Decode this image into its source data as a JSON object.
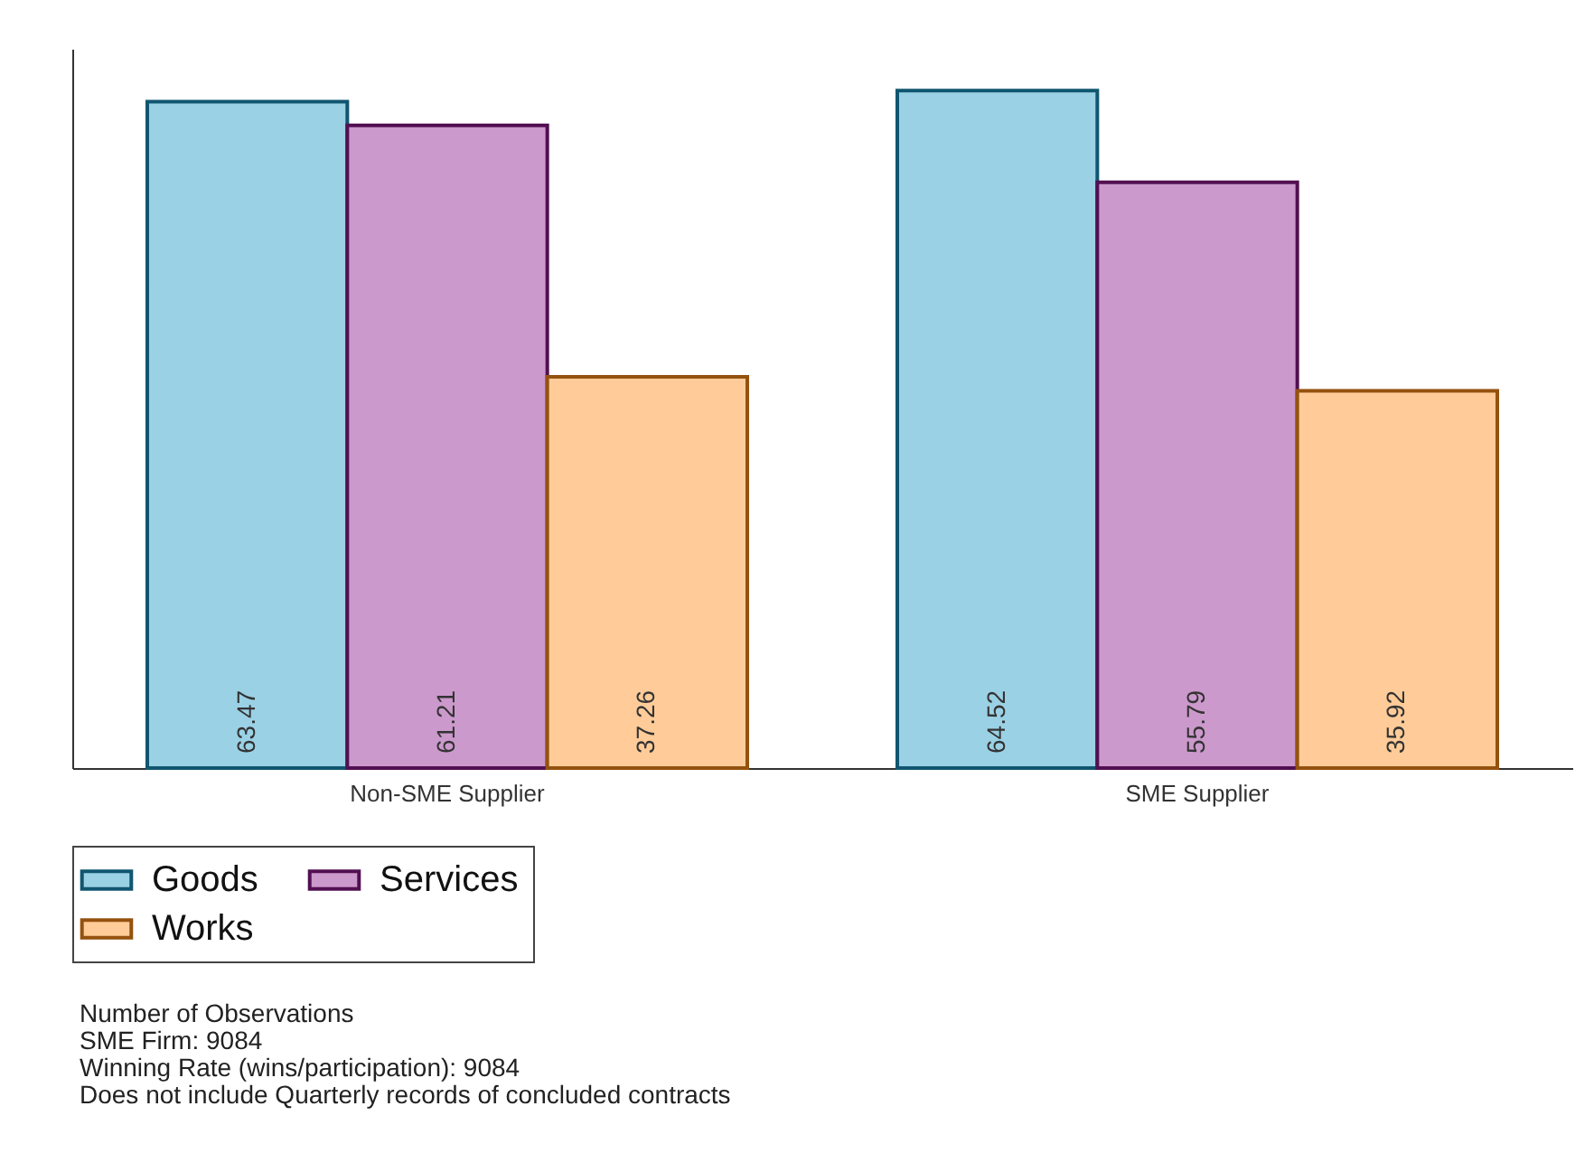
{
  "chart_data": {
    "type": "bar",
    "categories": [
      "Non-SME Supplier",
      "SME Supplier"
    ],
    "series": [
      {
        "name": "Goods",
        "color": "#9bd1e5",
        "values": [
          63.47,
          64.52
        ]
      },
      {
        "name": "Services",
        "color": "#cc99cc",
        "values": [
          61.21,
          55.79
        ]
      },
      {
        "name": "Works",
        "color": "#ffcc99",
        "values": [
          37.26,
          35.92
        ]
      }
    ],
    "ylim": [
      0,
      68.5
    ],
    "data_labels": true,
    "tick_labels": "x",
    "legend": "bottom",
    "annotations": [
      "Number of Observations",
      "SME Firm: 9084",
      "Winning Rate (wins/participation): 9084",
      "Does not include Quarterly records of concluded contracts"
    ]
  }
}
